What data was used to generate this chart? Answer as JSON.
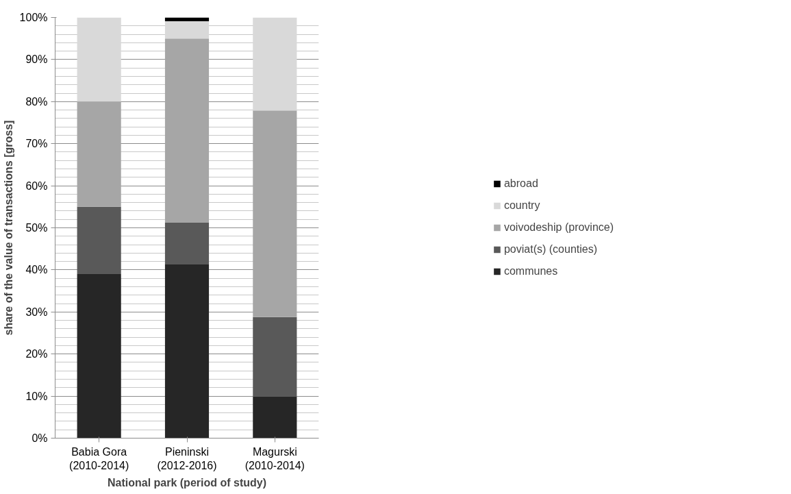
{
  "chart_data": {
    "type": "bar",
    "stacked": true,
    "xlabel": "National park (period of study)",
    "ylabel": "share of the value of transactions [gross]",
    "categories": [
      "Babia Gora (2010-2014)",
      "Pieninski (2012-2016)",
      "Magurski (2010-2014)"
    ],
    "series": [
      {
        "name": "communes",
        "color": "#262626",
        "values": [
          39,
          41.3,
          9.9
        ]
      },
      {
        "name": "poviat(s) (counties)",
        "color": "#595959",
        "values": [
          16,
          10,
          18.9
        ]
      },
      {
        "name": "voivodeship (province)",
        "color": "#a6a6a6",
        "values": [
          25,
          43.7,
          49.1
        ]
      },
      {
        "name": "country",
        "color": "#d9d9d9",
        "values": [
          20,
          4.1,
          22.1
        ]
      },
      {
        "name": "abroad",
        "color": "#000000",
        "values": [
          0,
          0.9,
          0
        ]
      }
    ],
    "ylim": [
      0,
      100
    ],
    "yticks": [
      {
        "value": 0,
        "label": "0%"
      },
      {
        "value": 10,
        "label": "10%"
      },
      {
        "value": 20,
        "label": "20%"
      },
      {
        "value": 30,
        "label": "30%"
      },
      {
        "value": 40,
        "label": "40%"
      },
      {
        "value": 50,
        "label": "50%"
      },
      {
        "value": 60,
        "label": "60%"
      },
      {
        "value": 70,
        "label": "70%"
      },
      {
        "value": 80,
        "label": "80%"
      },
      {
        "value": 90,
        "label": "90%"
      },
      {
        "value": 100,
        "label": "100%"
      }
    ],
    "grid": "y",
    "legend": "right"
  }
}
